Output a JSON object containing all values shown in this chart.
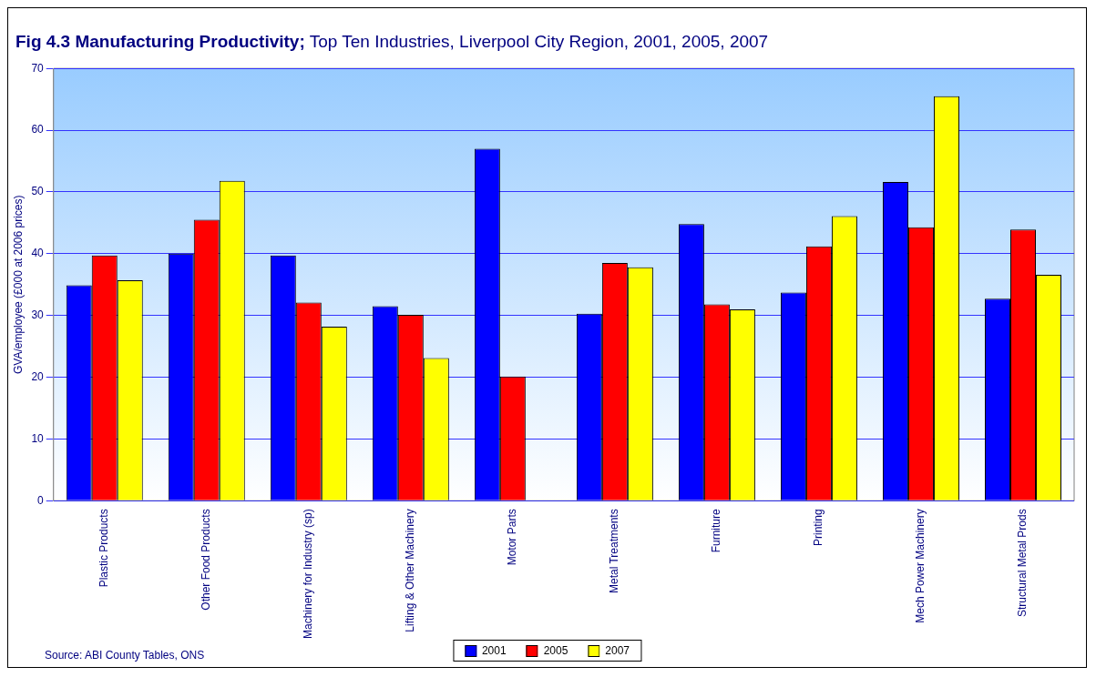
{
  "chart_data": {
    "type": "bar",
    "title": "Fig 4.3 Manufacturing Productivity;",
    "subtitle": "Top Ten Industries, Liverpool City Region, 2001, 2005, 2007",
    "ylabel": "GVA/employee (£000 at 2006 prices)",
    "categories": [
      "Plastic Products",
      "Other Food Products",
      "Machinery for Industry (sp)",
      "Lifting & Other Machinery",
      "Motor Parts",
      "Metal Treatments",
      "Furniture",
      "Printing",
      "Mech Power Machinery",
      "Structural Metal Prods"
    ],
    "series": [
      {
        "name": "2001",
        "color": "#0000ff",
        "values": [
          34.9,
          40,
          39.7,
          31.5,
          57,
          30.3,
          44.8,
          33.7,
          51.6,
          32.7
        ]
      },
      {
        "name": "2005",
        "color": "#ff0000",
        "values": [
          39.7,
          45.5,
          32.1,
          30.1,
          20.1,
          38.5,
          31.8,
          41.2,
          44.3,
          43.9
        ]
      },
      {
        "name": "2007",
        "color": "#ffff00",
        "values": [
          35.7,
          51.8,
          28.2,
          23.1,
          null,
          37.8,
          31,
          46.1,
          65.5,
          36.6
        ]
      }
    ],
    "ylim": [
      0,
      70
    ],
    "yticks": [
      0,
      10,
      20,
      30,
      40,
      50,
      60,
      70
    ],
    "grid": "y",
    "legend": "bottom",
    "annotations": [
      "Source: ABI County Tables, ONS"
    ]
  }
}
